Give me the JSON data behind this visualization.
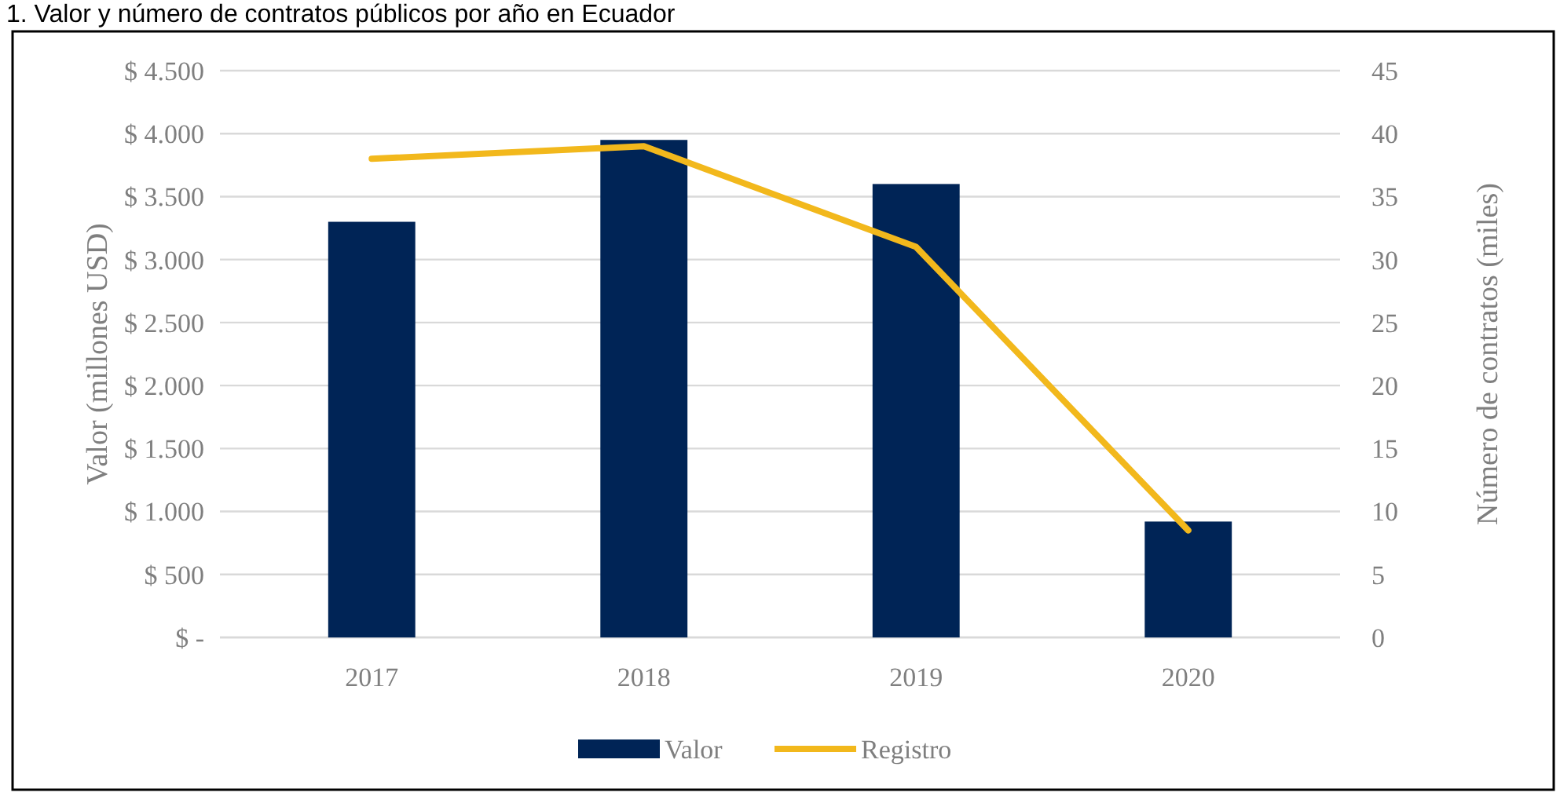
{
  "chart_data": {
    "type": "bar",
    "title": "1. Valor y número de contratos públicos por año en Ecuador",
    "ylabel": "Valor (millones USD)",
    "y2label": "Número de contratos (miles)",
    "categories": [
      "2017",
      "2018",
      "2019",
      "2020"
    ],
    "series": [
      {
        "name": "Valor",
        "color": "#002456",
        "values": [
          3300,
          3950,
          3600,
          920
        ]
      },
      {
        "name": "Registro",
        "type": "line",
        "color": "#f2b81c",
        "axis": "y2",
        "values": [
          38,
          39,
          31,
          8.5
        ]
      }
    ],
    "ylim": [
      0,
      4500
    ],
    "yticks": [
      {
        "value": 0,
        "label": "$ -"
      },
      {
        "value": 500,
        "label": "$ 500"
      },
      {
        "value": 1000,
        "label": "$ 1.000"
      },
      {
        "value": 1500,
        "label": "$ 1.500"
      },
      {
        "value": 2000,
        "label": "$ 2.000"
      },
      {
        "value": 2500,
        "label": "$ 2.500"
      },
      {
        "value": 3000,
        "label": "$ 3.000"
      },
      {
        "value": 3500,
        "label": "$ 3.500"
      },
      {
        "value": 4000,
        "label": "$ 4.000"
      },
      {
        "value": 4500,
        "label": "$ 4.500"
      }
    ],
    "y2lim": [
      0,
      45
    ],
    "y2ticks": [
      0,
      5,
      10,
      15,
      20,
      25,
      30,
      35,
      40,
      45
    ],
    "grid": "y",
    "legend": "bottom",
    "marker": "none",
    "line_style": "solid"
  }
}
